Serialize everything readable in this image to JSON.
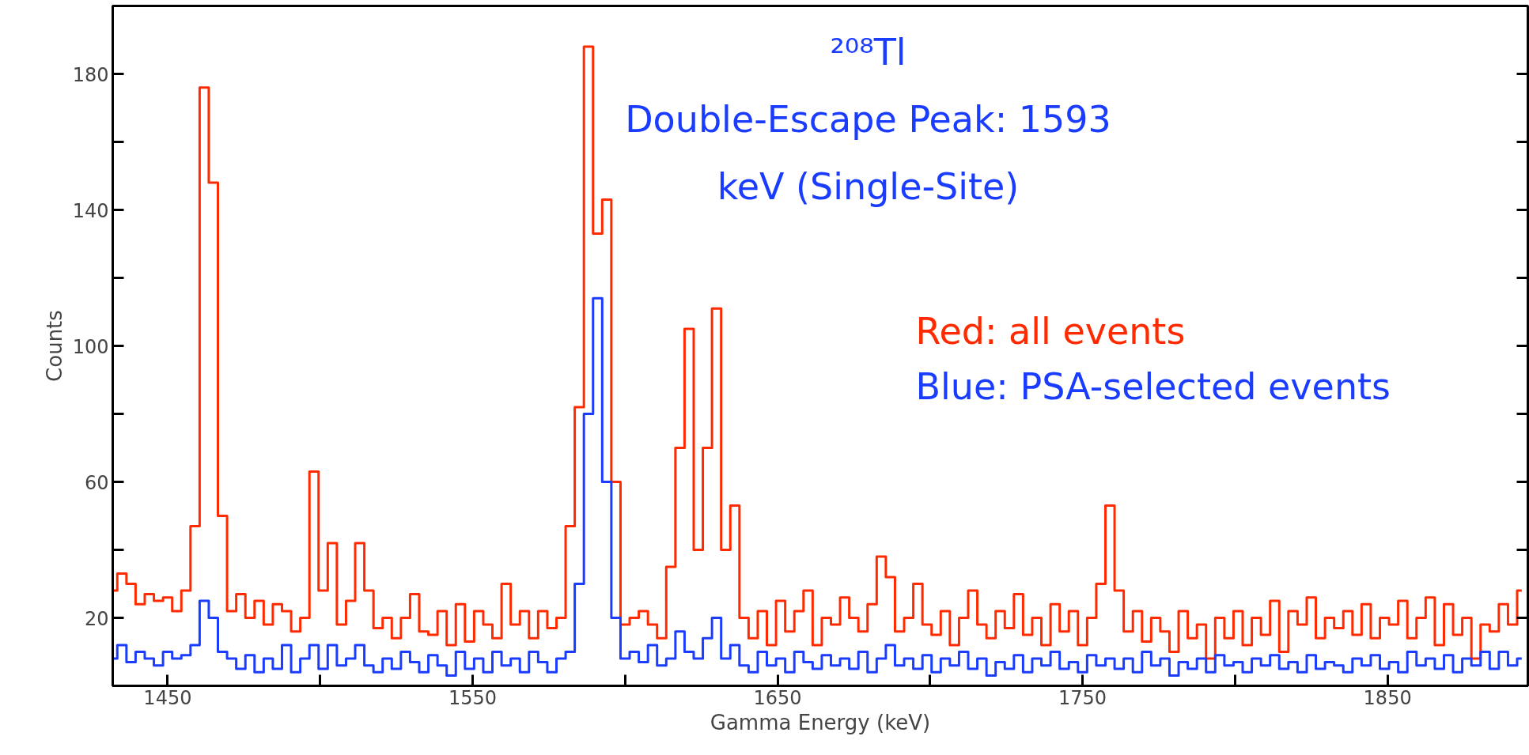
{
  "chart_data": {
    "type": "step",
    "xlabel": "Gamma Energy (keV)",
    "ylabel": "Counts",
    "annotations": [
      "²⁰⁸Tl",
      "Double-Escape Peak: 1593",
      "keV (Single-Site)"
    ],
    "x": [
      1432,
      1435,
      1438,
      1441,
      1444,
      1447,
      1450,
      1453,
      1456,
      1459,
      1462,
      1465,
      1468,
      1471,
      1474,
      1477,
      1480,
      1483,
      1486,
      1489,
      1492,
      1495,
      1498,
      1501,
      1504,
      1507,
      1510,
      1513,
      1516,
      1519,
      1522,
      1525,
      1528,
      1531,
      1534,
      1537,
      1540,
      1543,
      1546,
      1549,
      1552,
      1555,
      1558,
      1561,
      1564,
      1567,
      1570,
      1573,
      1576,
      1579,
      1582,
      1585,
      1588,
      1591,
      1594,
      1597,
      1600,
      1603,
      1606,
      1609,
      1612,
      1615,
      1618,
      1621,
      1624,
      1627,
      1630,
      1633,
      1636,
      1639,
      1642,
      1645,
      1648,
      1651,
      1654,
      1657,
      1660,
      1663,
      1666,
      1669,
      1672,
      1675,
      1678,
      1681,
      1684,
      1687,
      1690,
      1693,
      1696,
      1699,
      1702,
      1705,
      1708,
      1711,
      1714,
      1717,
      1720,
      1723,
      1726,
      1729,
      1732,
      1735,
      1738,
      1741,
      1744,
      1747,
      1750,
      1753,
      1756,
      1759,
      1762,
      1765,
      1768,
      1771,
      1774,
      1777,
      1780,
      1783,
      1786,
      1789,
      1792,
      1795,
      1798,
      1801,
      1804,
      1807,
      1810,
      1813,
      1816,
      1819,
      1822,
      1825,
      1828,
      1831,
      1834,
      1837,
      1840,
      1843,
      1846,
      1849,
      1852,
      1855,
      1858,
      1861,
      1864,
      1867,
      1870,
      1873,
      1876,
      1879,
      1882,
      1885,
      1888,
      1891,
      1894
    ],
    "series": [
      {
        "name": "Red: all events",
        "color": "#ff2a00",
        "values": [
          28,
          33,
          30,
          24,
          27,
          25,
          26,
          22,
          28,
          47,
          176,
          148,
          50,
          22,
          27,
          20,
          25,
          18,
          24,
          22,
          16,
          20,
          63,
          28,
          42,
          18,
          25,
          42,
          28,
          17,
          20,
          14,
          20,
          27,
          16,
          15,
          22,
          12,
          24,
          13,
          22,
          18,
          14,
          30,
          18,
          22,
          14,
          22,
          17,
          20,
          47,
          82,
          188,
          133,
          143,
          60,
          18,
          20,
          22,
          18,
          14,
          35,
          70,
          105,
          40,
          70,
          111,
          40,
          53,
          20,
          14,
          22,
          12,
          25,
          16,
          22,
          28,
          12,
          20,
          18,
          26,
          20,
          16,
          24,
          38,
          32,
          16,
          20,
          30,
          18,
          15,
          22,
          12,
          20,
          28,
          18,
          14,
          22,
          17,
          27,
          15,
          20,
          12,
          24,
          16,
          22,
          12,
          20,
          30,
          53,
          28,
          16,
          22,
          13,
          20,
          16,
          10,
          22,
          14,
          18,
          8,
          20,
          14,
          22,
          12,
          20,
          15,
          25,
          10,
          22,
          18,
          26,
          14,
          20,
          17,
          22,
          15,
          24,
          14,
          20,
          18,
          25,
          14,
          20,
          26,
          12,
          24,
          15,
          20,
          8,
          18,
          16,
          24,
          18,
          28
        ]
      },
      {
        "name": "Blue: PSA-selected events",
        "color": "#1a3cff",
        "values": [
          8,
          12,
          7,
          10,
          8,
          6,
          10,
          8,
          9,
          12,
          25,
          20,
          10,
          8,
          5,
          9,
          4,
          8,
          5,
          12,
          4,
          8,
          12,
          5,
          12,
          6,
          8,
          12,
          6,
          4,
          8,
          5,
          10,
          7,
          4,
          9,
          6,
          3,
          10,
          5,
          8,
          4,
          10,
          6,
          8,
          4,
          10,
          7,
          4,
          8,
          10,
          30,
          80,
          114,
          60,
          20,
          8,
          10,
          7,
          12,
          6,
          8,
          16,
          10,
          8,
          14,
          20,
          8,
          12,
          6,
          4,
          10,
          6,
          8,
          4,
          10,
          7,
          5,
          9,
          6,
          8,
          5,
          10,
          4,
          8,
          12,
          6,
          8,
          5,
          9,
          4,
          8,
          6,
          10,
          5,
          8,
          3,
          7,
          5,
          9,
          4,
          8,
          6,
          10,
          5,
          7,
          4,
          9,
          6,
          8,
          5,
          8,
          4,
          10,
          6,
          8,
          3,
          7,
          5,
          8,
          4,
          9,
          6,
          7,
          4,
          8,
          6,
          9,
          5,
          7,
          4,
          9,
          5,
          7,
          6,
          4,
          8,
          6,
          9,
          5,
          7,
          4,
          10,
          6,
          8,
          5,
          9,
          4,
          8,
          6,
          10,
          5,
          10,
          6,
          8
        ]
      }
    ],
    "xlim": [
      1432,
      1896
    ],
    "xticks": [
      1450,
      {
        "value": 1500,
        "label": null
      },
      1550,
      {
        "value": 1600,
        "label": null
      },
      1650,
      {
        "value": 1700,
        "label": null
      },
      1750,
      {
        "value": 1800,
        "label": null
      },
      1850
    ],
    "ylim": [
      0,
      200
    ],
    "yticks": [
      20,
      {
        "value": 40,
        "label": null
      },
      60,
      {
        "value": 80,
        "label": null
      },
      100,
      {
        "value": 120,
        "label": null
      },
      140,
      {
        "value": 160,
        "label": null
      },
      180
    ],
    "grid": false,
    "legend": "right",
    "line_style": "solid"
  }
}
